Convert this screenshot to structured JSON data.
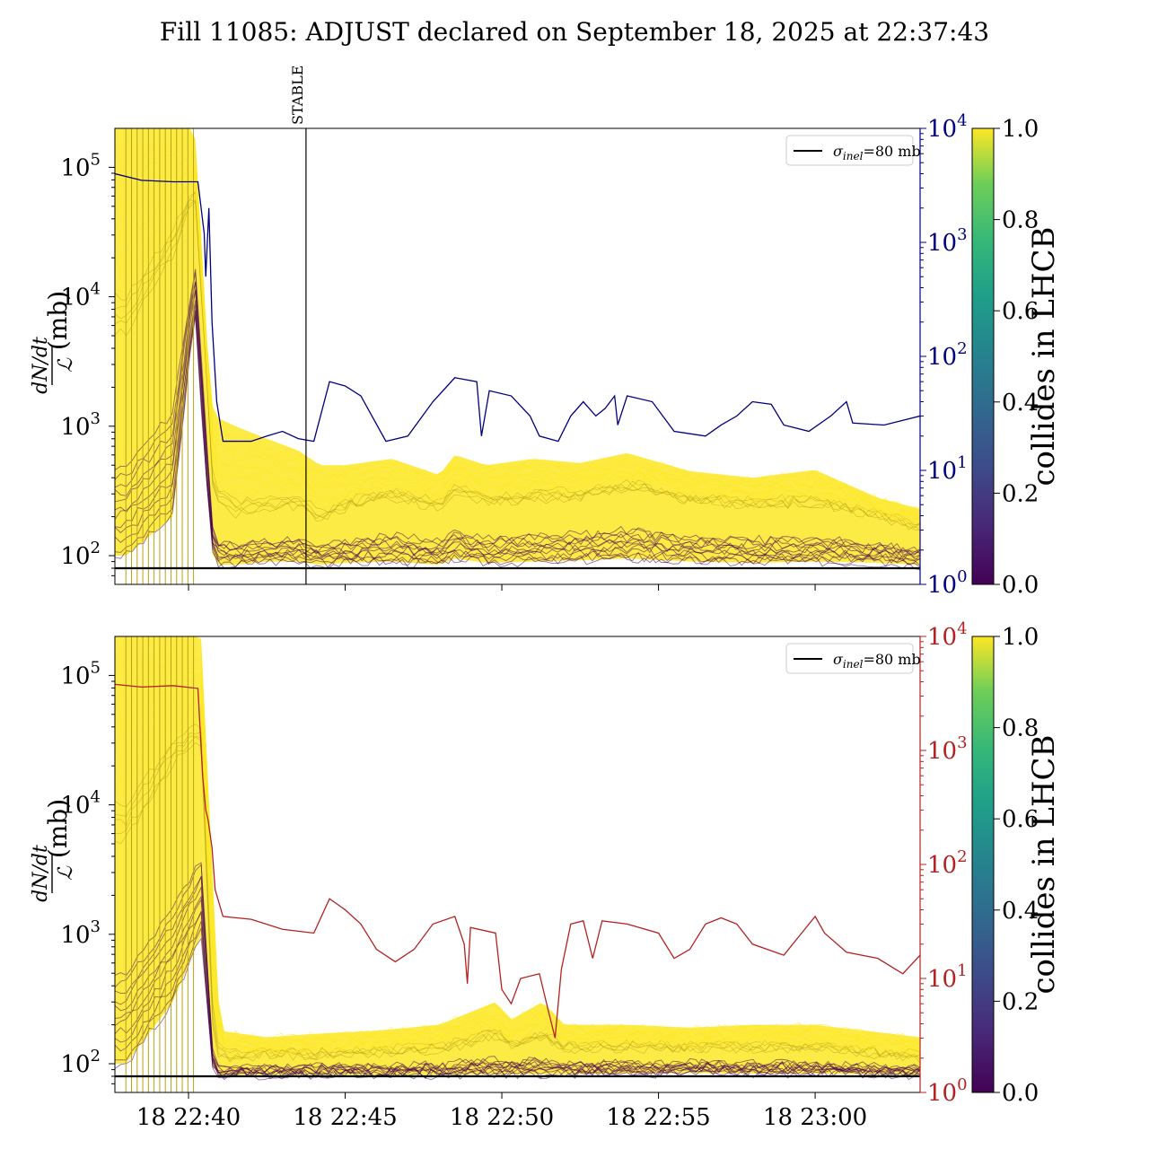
{
  "title": "Fill 11085: ADJUST declared on September 18, 2025 at 22:37:43",
  "colors": {
    "accent_top": "#00007f",
    "accent_bottom": "#b22222",
    "sigma_line": "#000000",
    "yellow": "#fde725",
    "dark": "#440154",
    "olive": "#b8a214"
  },
  "chart_data": [
    {
      "type": "line",
      "panel": "top",
      "ylabel_numerator": "dN/dt",
      "ylabel_denominator": "ℒ",
      "ylabel_unit": "(mb)",
      "yscale": "log",
      "ylim": [
        60,
        200000
      ],
      "yticks": [
        "10",
        "10",
        "10",
        "10"
      ],
      "yticks_exp": [
        "2",
        "3",
        "4",
        "5"
      ],
      "yticks_values": [
        100,
        1000,
        10000,
        100000
      ],
      "y2scale": "log",
      "y2lim": [
        1,
        10000
      ],
      "y2ticks": [
        "10",
        "10",
        "10",
        "10",
        "10"
      ],
      "y2ticks_exp": [
        "0",
        "1",
        "2",
        "3",
        "4"
      ],
      "y2color": "#00007f",
      "xlabel": "",
      "x_tick_labels": [
        "18 22:40",
        "18 22:45",
        "18 22:50",
        "18 22:55",
        "18 23:00"
      ],
      "x_tick_minutes": [
        2.0,
        7.0,
        12.0,
        17.0,
        22.0
      ],
      "xlim_minutes": [
        -0.35,
        25.35
      ],
      "annotation": {
        "label": "STABLE",
        "x_minutes": 5.75
      },
      "legend": {
        "entry_prefix": "σ",
        "entry_sub": "inel",
        "entry_suffix": "=80 mb",
        "position": "upper right"
      },
      "reference_line": {
        "name": "σinel=80 mb",
        "y": 80
      },
      "band_quantiles": [
        {
          "x": 0.0,
          "low": 100,
          "mid": 5000,
          "high": 200000
        },
        {
          "x": 1.5,
          "low": 200,
          "mid": 20000,
          "high": 200000
        },
        {
          "x": 2.2,
          "low": 8000,
          "mid": 60000,
          "high": 200000
        },
        {
          "x": 2.6,
          "low": 300,
          "mid": 2000,
          "high": 4000
        },
        {
          "x": 2.8,
          "low": 85,
          "mid": 250,
          "high": 1200
        },
        {
          "x": 3.5,
          "low": 85,
          "mid": 200,
          "high": 1000
        },
        {
          "x": 4.5,
          "low": 90,
          "mid": 220,
          "high": 800
        },
        {
          "x": 5.5,
          "low": 90,
          "mid": 240,
          "high": 650
        },
        {
          "x": 6.2,
          "low": 85,
          "mid": 180,
          "high": 500
        },
        {
          "x": 7.0,
          "low": 88,
          "mid": 230,
          "high": 500
        },
        {
          "x": 8.5,
          "low": 90,
          "mid": 280,
          "high": 560
        },
        {
          "x": 10.0,
          "low": 85,
          "mid": 230,
          "high": 420
        },
        {
          "x": 10.5,
          "low": 95,
          "mid": 310,
          "high": 600
        },
        {
          "x": 11.5,
          "low": 88,
          "mid": 250,
          "high": 500
        },
        {
          "x": 13.0,
          "low": 90,
          "mid": 270,
          "high": 560
        },
        {
          "x": 14.5,
          "low": 92,
          "mid": 280,
          "high": 520
        },
        {
          "x": 16.0,
          "low": 95,
          "mid": 330,
          "high": 620
        },
        {
          "x": 18.0,
          "low": 90,
          "mid": 260,
          "high": 450
        },
        {
          "x": 20.0,
          "low": 88,
          "mid": 240,
          "high": 400
        },
        {
          "x": 22.0,
          "low": 90,
          "mid": 250,
          "high": 460
        },
        {
          "x": 24.0,
          "low": 88,
          "mid": 200,
          "high": 280
        },
        {
          "x": 25.35,
          "low": 85,
          "mid": 160,
          "high": 230
        }
      ],
      "secondary_series": {
        "name": "",
        "color": "#00007f",
        "points": [
          [
            -0.35,
            4000
          ],
          [
            0.5,
            3500
          ],
          [
            1.5,
            3400
          ],
          [
            2.3,
            3400
          ],
          [
            2.5,
            1200
          ],
          [
            2.55,
            500
          ],
          [
            2.65,
            2000
          ],
          [
            2.75,
            200
          ],
          [
            2.9,
            40
          ],
          [
            3.1,
            18
          ],
          [
            4.0,
            18
          ],
          [
            4.5,
            20
          ],
          [
            5.0,
            22
          ],
          [
            5.5,
            19
          ],
          [
            6.0,
            18
          ],
          [
            6.5,
            60
          ],
          [
            7.0,
            55
          ],
          [
            7.5,
            45
          ],
          [
            8.3,
            18
          ],
          [
            9.0,
            20
          ],
          [
            9.8,
            40
          ],
          [
            10.5,
            65
          ],
          [
            11.2,
            60
          ],
          [
            11.35,
            20
          ],
          [
            11.6,
            50
          ],
          [
            12.3,
            45
          ],
          [
            12.9,
            30
          ],
          [
            13.2,
            20
          ],
          [
            13.8,
            18
          ],
          [
            14.2,
            30
          ],
          [
            14.6,
            40
          ],
          [
            15.0,
            30
          ],
          [
            15.3,
            35
          ],
          [
            15.6,
            45
          ],
          [
            15.7,
            25
          ],
          [
            16.0,
            45
          ],
          [
            16.8,
            40
          ],
          [
            17.5,
            22
          ],
          [
            18.5,
            20
          ],
          [
            19.0,
            25
          ],
          [
            19.5,
            30
          ],
          [
            20.0,
            40
          ],
          [
            20.6,
            38
          ],
          [
            21.0,
            25
          ],
          [
            21.8,
            22
          ],
          [
            22.5,
            30
          ],
          [
            23.0,
            40
          ],
          [
            23.2,
            26
          ],
          [
            24.2,
            25
          ],
          [
            25.35,
            30
          ]
        ]
      },
      "colorbar": {
        "label": "collides in LHCB",
        "min": 0.0,
        "max": 1.0,
        "ticks": [
          "0.0",
          "0.2",
          "0.4",
          "0.6",
          "0.8",
          "1.0"
        ],
        "colormap": "viridis"
      }
    },
    {
      "type": "line",
      "panel": "bottom",
      "ylabel_numerator": "dN/dt",
      "ylabel_denominator": "ℒ",
      "ylabel_unit": "(mb)",
      "yscale": "log",
      "ylim": [
        60,
        200000
      ],
      "yticks": [
        "10",
        "10",
        "10",
        "10"
      ],
      "yticks_exp": [
        "2",
        "3",
        "4",
        "5"
      ],
      "yticks_values": [
        100,
        1000,
        10000,
        100000
      ],
      "y2scale": "log",
      "y2lim": [
        1,
        10000
      ],
      "y2ticks": [
        "10",
        "10",
        "10",
        "10",
        "10"
      ],
      "y2ticks_exp": [
        "0",
        "1",
        "2",
        "3",
        "4"
      ],
      "y2color": "#b22222",
      "xlabel": "",
      "x_tick_labels": [
        "18 22:40",
        "18 22:45",
        "18 22:50",
        "18 22:55",
        "18 23:00"
      ],
      "x_tick_minutes": [
        2.0,
        7.0,
        12.0,
        17.0,
        22.0
      ],
      "xlim_minutes": [
        -0.35,
        25.35
      ],
      "legend": {
        "entry_prefix": "σ",
        "entry_sub": "inel",
        "entry_suffix": "=80 mb",
        "position": "upper right"
      },
      "reference_line": {
        "name": "σinel=80 mb",
        "y": 80
      },
      "band_quantiles": [
        {
          "x": 0.0,
          "low": 100,
          "mid": 5000,
          "high": 200000
        },
        {
          "x": 1.5,
          "low": 300,
          "mid": 20000,
          "high": 200000
        },
        {
          "x": 2.4,
          "low": 1000,
          "mid": 30000,
          "high": 200000
        },
        {
          "x": 2.8,
          "low": 82,
          "mid": 120,
          "high": 2000
        },
        {
          "x": 3.0,
          "low": 82,
          "mid": 110,
          "high": 180
        },
        {
          "x": 4.5,
          "low": 82,
          "mid": 115,
          "high": 160
        },
        {
          "x": 6.0,
          "low": 82,
          "mid": 115,
          "high": 170
        },
        {
          "x": 8.0,
          "low": 82,
          "mid": 120,
          "high": 180
        },
        {
          "x": 10.0,
          "low": 82,
          "mid": 125,
          "high": 200
        },
        {
          "x": 11.8,
          "low": 83,
          "mid": 160,
          "high": 300
        },
        {
          "x": 12.3,
          "low": 83,
          "mid": 130,
          "high": 220
        },
        {
          "x": 13.3,
          "low": 83,
          "mid": 160,
          "high": 300
        },
        {
          "x": 14.0,
          "low": 83,
          "mid": 130,
          "high": 200
        },
        {
          "x": 16.0,
          "low": 84,
          "mid": 130,
          "high": 200
        },
        {
          "x": 18.0,
          "low": 85,
          "mid": 130,
          "high": 190
        },
        {
          "x": 20.0,
          "low": 84,
          "mid": 130,
          "high": 200
        },
        {
          "x": 22.0,
          "low": 84,
          "mid": 130,
          "high": 200
        },
        {
          "x": 25.35,
          "low": 82,
          "mid": 110,
          "high": 160
        }
      ],
      "secondary_series": {
        "name": "",
        "color": "#b22222",
        "points": [
          [
            -0.35,
            3800
          ],
          [
            0.5,
            3600
          ],
          [
            1.5,
            3700
          ],
          [
            2.3,
            3500
          ],
          [
            2.45,
            600
          ],
          [
            2.55,
            300
          ],
          [
            2.62,
            250
          ],
          [
            2.75,
            140
          ],
          [
            2.85,
            60
          ],
          [
            3.1,
            35
          ],
          [
            4.0,
            33
          ],
          [
            5.0,
            27
          ],
          [
            6.0,
            25
          ],
          [
            6.5,
            50
          ],
          [
            7.0,
            40
          ],
          [
            7.5,
            30
          ],
          [
            8.0,
            18
          ],
          [
            8.6,
            14
          ],
          [
            9.2,
            18
          ],
          [
            9.8,
            30
          ],
          [
            10.5,
            35
          ],
          [
            10.8,
            20
          ],
          [
            10.9,
            9
          ],
          [
            11.0,
            28
          ],
          [
            11.8,
            25
          ],
          [
            12.0,
            8
          ],
          [
            12.3,
            6
          ],
          [
            12.6,
            10
          ],
          [
            13.2,
            11
          ],
          [
            13.5,
            5
          ],
          [
            13.7,
            3
          ],
          [
            13.9,
            12
          ],
          [
            14.2,
            30
          ],
          [
            14.6,
            32
          ],
          [
            14.9,
            15
          ],
          [
            15.2,
            32
          ],
          [
            16.0,
            30
          ],
          [
            17.0,
            25
          ],
          [
            17.5,
            15
          ],
          [
            18.0,
            18
          ],
          [
            18.5,
            30
          ],
          [
            19.0,
            34
          ],
          [
            19.5,
            30
          ],
          [
            20.0,
            20
          ],
          [
            21.0,
            16
          ],
          [
            22.0,
            35
          ],
          [
            22.3,
            25
          ],
          [
            23.0,
            17
          ],
          [
            24.0,
            15
          ],
          [
            24.8,
            11
          ],
          [
            25.35,
            16
          ]
        ]
      },
      "colorbar": {
        "label": "collides in LHCB",
        "min": 0.0,
        "max": 1.0,
        "ticks": [
          "0.0",
          "0.2",
          "0.4",
          "0.6",
          "0.8",
          "1.0"
        ],
        "colormap": "viridis"
      }
    }
  ]
}
